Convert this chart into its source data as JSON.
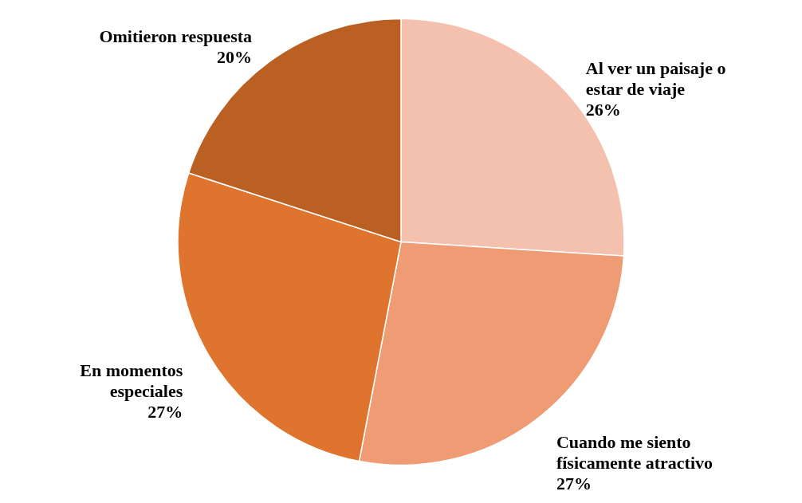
{
  "chart_data": {
    "type": "pie",
    "categories": [
      "Al ver un paisaje o estar de viaje",
      "Cuando me siento físicamente atractivo",
      "En momentos especiales",
      "Omitieron respuesta"
    ],
    "values": [
      26,
      27,
      27,
      20
    ],
    "value_labels": [
      "26%",
      "27%",
      "27%",
      "20%"
    ],
    "colors": [
      "#f4c1ae",
      "#ef9b73",
      "#df742e",
      "#bb6023"
    ]
  }
}
